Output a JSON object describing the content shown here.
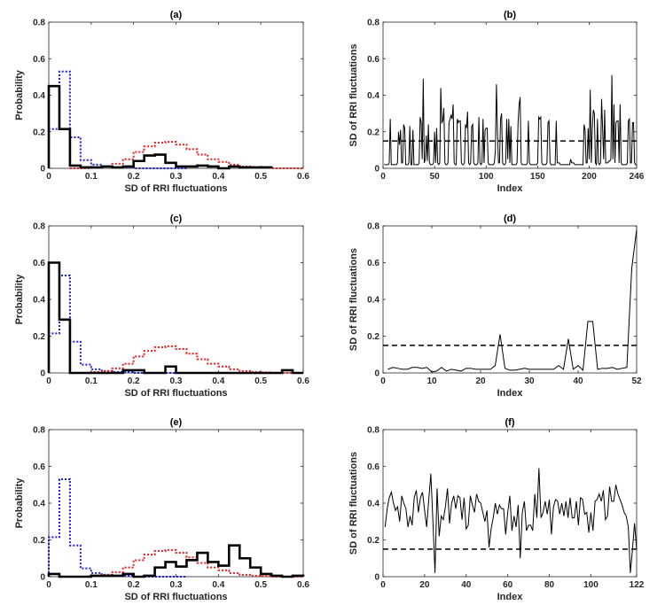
{
  "chart_data": [
    {
      "panel": "(a)",
      "type": "histogram-stairs",
      "title": "(a)",
      "xlabel": "SD of RRI fluctuations",
      "ylabel": "Probability",
      "xlim": [
        0,
        0.6
      ],
      "ylim": [
        0,
        0.8
      ],
      "bin_width": 0.025,
      "xticks": [
        "0",
        "0.1",
        "0.2",
        "0.3",
        "0.4",
        "0.5",
        "0.6"
      ],
      "yticks": [
        "0",
        "0.2",
        "0.4",
        "0.6",
        "0.8"
      ],
      "series": [
        {
          "color": "#1f1fcf",
          "style": "dotted",
          "start": 0,
          "values": [
            0.215,
            0.53,
            0.17,
            0.045,
            0.02,
            0.01,
            0.005,
            0.005,
            0,
            0,
            0,
            0,
            0
          ]
        },
        {
          "color": "#e02020",
          "style": "dotted",
          "start": 0.05,
          "values": [
            0,
            0,
            0.005,
            0.01,
            0.025,
            0.05,
            0.09,
            0.12,
            0.14,
            0.145,
            0.13,
            0.105,
            0.075,
            0.05,
            0.035,
            0.02,
            0.01,
            0.005,
            0.003,
            0,
            0,
            0
          ]
        },
        {
          "color": "#000000",
          "style": "solid",
          "start": 0,
          "values": [
            0.45,
            0.215,
            0.015,
            0.005,
            0.005,
            0.01,
            0.005,
            0.01,
            0.04,
            0.07,
            0.075,
            0.03,
            0.01,
            0.01,
            0.015,
            0.01,
            0,
            0.01,
            0.005,
            0.005,
            0.005
          ]
        }
      ]
    },
    {
      "panel": "(b)",
      "type": "line",
      "title": "(b)",
      "xlabel": "Index",
      "ylabel": "SD of RRI fluctuations",
      "xlim": [
        0,
        246
      ],
      "ylim": [
        0,
        0.8
      ],
      "threshold": 0.15,
      "xticks": [
        "0",
        "50",
        "100",
        "150",
        "200",
        "246"
      ],
      "xtick_values": [
        0,
        50,
        100,
        150,
        200,
        246
      ],
      "yticks": [
        "0",
        "0.2",
        "0.4",
        "0.6",
        "0.8"
      ],
      "values": [
        0.02,
        0.02,
        0.02,
        0.02,
        0.02,
        0.03,
        0.27,
        0.02,
        0.02,
        0.02,
        0.02,
        0.02,
        0.02,
        0.03,
        0.2,
        0.13,
        0.21,
        0.03,
        0.03,
        0.24,
        0.22,
        0.02,
        0.02,
        0.02,
        0.03,
        0.23,
        0.02,
        0.02,
        0.21,
        0.02,
        0.02,
        0.02,
        0.02,
        0.02,
        0.03,
        0.28,
        0.25,
        0.05,
        0.49,
        0.03,
        0.05,
        0.18,
        0.04,
        0.24,
        0.03,
        0.02,
        0.02,
        0.02,
        0.03,
        0.2,
        0.03,
        0.22,
        0.03,
        0.02,
        0.03,
        0.44,
        0.25,
        0.26,
        0.33,
        0.03,
        0.02,
        0.02,
        0.03,
        0.25,
        0.27,
        0.29,
        0.27,
        0.35,
        0.03,
        0.02,
        0.02,
        0.27,
        0.25,
        0.26,
        0.26,
        0.03,
        0.02,
        0.02,
        0.03,
        0.24,
        0.22,
        0.31,
        0.03,
        0.02,
        0.03,
        0.23,
        0.24,
        0.03,
        0.02,
        0.02,
        0.02,
        0.03,
        0.28,
        0.03,
        0.02,
        0.03,
        0.27,
        0.03,
        0.21,
        0.22,
        0.22,
        0.03,
        0.02,
        0.02,
        0.02,
        0.02,
        0.02,
        0.03,
        0.1,
        0.46,
        0.2,
        0.03,
        0.03,
        0.27,
        0.3,
        0.03,
        0.02,
        0.02,
        0.03,
        0.27,
        0.05,
        0.27,
        0.03,
        0.23,
        0.02,
        0.02,
        0.02,
        0.02,
        0.02,
        0.03,
        0.25,
        0.35,
        0.39,
        0.03,
        0.02,
        0.02,
        0.02,
        0.02,
        0.02,
        0.03,
        0.26,
        0.03,
        0.02,
        0.02,
        0.02,
        0.02,
        0.02,
        0.02,
        0.02,
        0.03,
        0.28,
        0.27,
        0.28,
        0.03,
        0.02,
        0.02,
        0.02,
        0.02,
        0.03,
        0.25,
        0.26,
        0.03,
        0.02,
        0.02,
        0.02,
        0.02,
        0.02,
        0.26,
        0.03,
        0.03,
        0.03,
        0.02,
        0.02,
        0.02,
        0.02,
        0.02,
        0.02,
        0.02,
        0.02,
        0.02,
        0.02,
        0.05,
        0.03,
        0.03,
        0.03,
        0.02,
        0.02,
        0.02,
        0.02,
        0.02,
        0.02,
        0.02,
        0.02,
        0.02,
        0.24,
        0.21,
        0.03,
        0.03,
        0.22,
        0.05,
        0.43,
        0.03,
        0.22,
        0.32,
        0.3,
        0.03,
        0.02,
        0.27,
        0.03,
        0.02,
        0.03,
        0.38,
        0.22,
        0.05,
        0.32,
        0.03,
        0.03,
        0.03,
        0.04,
        0.04,
        0.05,
        0.51,
        0.05,
        0.35,
        0.03,
        0.25,
        0.26,
        0.26,
        0.03,
        0.35,
        0.03,
        0.02,
        0.02,
        0.02,
        0.02,
        0.02,
        0.03,
        0.26,
        0.27,
        0.03,
        0.03,
        0.25,
        0.25,
        0.03,
        0.02,
        0.02
      ]
    },
    {
      "panel": "(c)",
      "type": "histogram-stairs",
      "title": "(c)",
      "xlabel": "SD of RRI fluctuations",
      "ylabel": "Probability",
      "xlim": [
        0,
        0.6
      ],
      "ylim": [
        0,
        0.8
      ],
      "bin_width": 0.025,
      "xticks": [
        "0",
        "0.1",
        "0.2",
        "0.3",
        "0.4",
        "0.5",
        "0.6"
      ],
      "yticks": [
        "0",
        "0.2",
        "0.4",
        "0.6",
        "0.8"
      ],
      "series": [
        {
          "color": "#1f1fcf",
          "style": "dotted",
          "start": 0,
          "values": [
            0.215,
            0.53,
            0.17,
            0.045,
            0.02,
            0.01,
            0.005,
            0.005,
            0,
            0,
            0,
            0,
            0
          ]
        },
        {
          "color": "#e02020",
          "style": "dotted",
          "start": 0.05,
          "values": [
            0,
            0,
            0.005,
            0.01,
            0.025,
            0.05,
            0.09,
            0.12,
            0.14,
            0.145,
            0.13,
            0.105,
            0.075,
            0.05,
            0.035,
            0.02,
            0.01,
            0.005,
            0.003,
            0,
            0,
            0
          ]
        },
        {
          "color": "#000000",
          "style": "solid",
          "start": 0,
          "values": [
            0.6,
            0.29,
            0,
            0,
            0,
            0,
            0,
            0.015,
            0.015,
            0,
            0,
            0.035,
            0,
            0,
            0,
            0,
            0,
            0,
            0,
            0,
            0,
            0,
            0.015,
            0
          ]
        }
      ]
    },
    {
      "panel": "(d)",
      "type": "line",
      "title": "(d)",
      "xlabel": "Index",
      "ylabel": "SD of RRI fluctuations",
      "xlim": [
        0,
        52
      ],
      "ylim": [
        0,
        0.8
      ],
      "threshold": 0.15,
      "xticks": [
        "0",
        "10",
        "20",
        "30",
        "40",
        "52"
      ],
      "xtick_values": [
        0,
        10,
        20,
        30,
        40,
        52
      ],
      "yticks": [
        "0",
        "0.2",
        "0.4",
        "0.6",
        "0.8"
      ],
      "values": [
        0.02,
        0.03,
        0.025,
        0.02,
        0.02,
        0.03,
        0.03,
        0.025,
        0.03,
        0.005,
        0.01,
        0.03,
        0.01,
        0.02,
        0.015,
        0.01,
        0.025,
        0.025,
        0.02,
        0.02,
        0.02,
        0.02,
        0.04,
        0.21,
        0.025,
        0.015,
        0.015,
        0.02,
        0.025,
        0.02,
        0.02,
        0.02,
        0.02,
        0.02,
        0.02,
        0.04,
        0.02,
        0.185,
        0.02,
        0.04,
        0.015,
        0.28,
        0.28,
        0.02,
        0.025,
        0.025,
        0.03,
        0.02,
        0.025,
        0.03,
        0.57,
        0.78
      ]
    },
    {
      "panel": "(e)",
      "type": "histogram-stairs",
      "title": "(e)",
      "xlabel": "SD of RRI fluctuations",
      "ylabel": "Probability",
      "xlim": [
        0,
        0.6
      ],
      "ylim": [
        0,
        0.8
      ],
      "bin_width": 0.025,
      "xticks": [
        "0",
        "0.1",
        "0.2",
        "0.3",
        "0.4",
        "0.5",
        "0.6"
      ],
      "yticks": [
        "0",
        "0.2",
        "0.4",
        "0.6",
        "0.8"
      ],
      "series": [
        {
          "color": "#1f1fcf",
          "style": "dotted",
          "start": 0,
          "values": [
            0.215,
            0.53,
            0.17,
            0.045,
            0.02,
            0.01,
            0.005,
            0.005,
            0,
            0,
            0,
            0,
            0
          ]
        },
        {
          "color": "#e02020",
          "style": "dotted",
          "start": 0.05,
          "values": [
            0,
            0,
            0.005,
            0.01,
            0.025,
            0.05,
            0.09,
            0.12,
            0.14,
            0.145,
            0.13,
            0.105,
            0.075,
            0.05,
            0.035,
            0.02,
            0.01,
            0.005,
            0.003,
            0,
            0,
            0
          ]
        },
        {
          "color": "#000000",
          "style": "solid",
          "start": 0,
          "values": [
            0.015,
            0,
            0,
            0,
            0.005,
            0.005,
            0.005,
            0.015,
            0,
            0.005,
            0.05,
            0.08,
            0.055,
            0.09,
            0.13,
            0.08,
            0.06,
            0.17,
            0.1,
            0.05,
            0.015,
            0.005,
            0,
            0.005
          ]
        }
      ]
    },
    {
      "panel": "(f)",
      "type": "line",
      "title": "(f)",
      "xlabel": "Index",
      "ylabel": "SD of RRI fluctuations",
      "xlim": [
        0,
        122
      ],
      "ylim": [
        0,
        0.8
      ],
      "threshold": 0.15,
      "xticks": [
        "0",
        "20",
        "40",
        "60",
        "80",
        "100",
        "122"
      ],
      "xtick_values": [
        0,
        20,
        40,
        60,
        80,
        100,
        122
      ],
      "yticks": [
        "0",
        "0.2",
        "0.4",
        "0.6",
        "0.8"
      ],
      "values": [
        0.27,
        0.37,
        0.43,
        0.46,
        0.4,
        0.36,
        0.38,
        0.3,
        0.44,
        0.4,
        0.37,
        0.27,
        0.33,
        0.28,
        0.43,
        0.47,
        0.35,
        0.43,
        0.46,
        0.36,
        0.27,
        0.42,
        0.56,
        0.3,
        0.02,
        0.48,
        0.22,
        0.33,
        0.31,
        0.38,
        0.48,
        0.29,
        0.4,
        0.44,
        0.37,
        0.44,
        0.43,
        0.31,
        0.43,
        0.26,
        0.28,
        0.44,
        0.39,
        0.35,
        0.45,
        0.41,
        0.4,
        0.35,
        0.3,
        0.36,
        0.16,
        0.26,
        0.32,
        0.4,
        0.34,
        0.39,
        0.37,
        0.37,
        0.23,
        0.35,
        0.44,
        0.25,
        0.33,
        0.27,
        0.39,
        0.1,
        0.35,
        0.41,
        0.25,
        0.28,
        0.28,
        0.25,
        0.45,
        0.32,
        0.59,
        0.32,
        0.35,
        0.41,
        0.34,
        0.42,
        0.23,
        0.38,
        0.42,
        0.41,
        0.34,
        0.4,
        0.33,
        0.41,
        0.32,
        0.43,
        0.32,
        0.32,
        0.41,
        0.28,
        0.43,
        0.42,
        0.34,
        0.35,
        0.24,
        0.35,
        0.25,
        0.41,
        0.42,
        0.45,
        0.41,
        0.47,
        0.31,
        0.33,
        0.49,
        0.41,
        0.41,
        0.5,
        0.45,
        0.42,
        0.39,
        0.35,
        0.33,
        0.27,
        0.02,
        0.15,
        0.29,
        0.15
      ]
    }
  ]
}
